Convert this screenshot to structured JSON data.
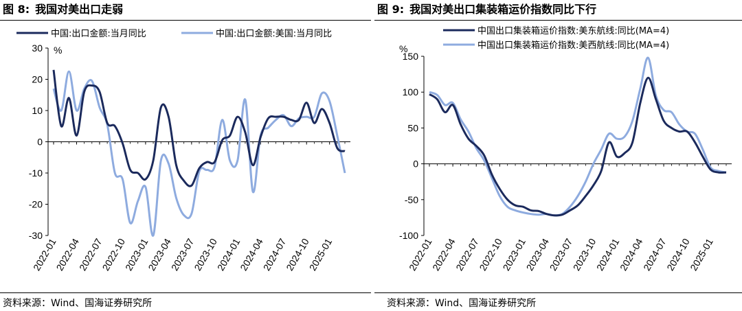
{
  "charts": [
    {
      "figure_label": "图 8:",
      "title": "我国对美出口走弱",
      "source": "资料来源：Wind、国海证券研究所",
      "chart_data": {
        "type": "line",
        "title": "我国对美出口走弱",
        "y_unit": "%",
        "ylim": [
          -30,
          30
        ],
        "yticks": [
          -30,
          -20,
          -10,
          0,
          10,
          20,
          30
        ],
        "x_tick_labels": [
          "2022-01",
          "2022-04",
          "2022-07",
          "2022-10",
          "2023-01",
          "2023-04",
          "2023-07",
          "2023-10",
          "2024-01",
          "2024-04",
          "2024-07",
          "2024-10",
          "2025-01"
        ],
        "grid": false,
        "legend_position": "top",
        "series": [
          {
            "name": "中国:出口金额:当月同比",
            "color": "#1b2a5c",
            "x": [
              "2022-01",
              "2022-02",
              "2022-03",
              "2022-04",
              "2022-05",
              "2022-06",
              "2022-07",
              "2022-08",
              "2022-09",
              "2022-10",
              "2022-11",
              "2022-12",
              "2023-01",
              "2023-02",
              "2023-03",
              "2023-04",
              "2023-05",
              "2023-06",
              "2023-07",
              "2023-08",
              "2023-09",
              "2023-10",
              "2023-11",
              "2023-12",
              "2024-01",
              "2024-02",
              "2024-03",
              "2024-04",
              "2024-05",
              "2024-06",
              "2024-07",
              "2024-08",
              "2024-09",
              "2024-10",
              "2024-11",
              "2024-12",
              "2025-01",
              "2025-02",
              "2025-03"
            ],
            "y": [
              23,
              5,
              14,
              2,
              16,
              18,
              16,
              6,
              5,
              -0.5,
              -9,
              -10,
              -12,
              -6,
              11,
              8,
              -7.5,
              -12.5,
              -14,
              -8.5,
              -6.5,
              -6.5,
              0.5,
              2,
              8,
              3,
              -7.5,
              1.5,
              7.5,
              8,
              8,
              7,
              7,
              12.5,
              6,
              10.5,
              6,
              -2,
              -3
            ]
          },
          {
            "name": "中国:出口金额:美国:当月同比",
            "color": "#8eabdf",
            "x": [
              "2022-01",
              "2022-02",
              "2022-03",
              "2022-04",
              "2022-05",
              "2022-06",
              "2022-07",
              "2022-08",
              "2022-09",
              "2022-10",
              "2022-11",
              "2022-12",
              "2023-01",
              "2023-02",
              "2023-03",
              "2023-04",
              "2023-05",
              "2023-06",
              "2023-07",
              "2023-08",
              "2023-09",
              "2023-10",
              "2023-11",
              "2023-12",
              "2024-01",
              "2024-02",
              "2024-03",
              "2024-04",
              "2024-05",
              "2024-06",
              "2024-07",
              "2024-08",
              "2024-09",
              "2024-10",
              "2024-11",
              "2024-12",
              "2025-01",
              "2025-02",
              "2025-03"
            ],
            "y": [
              17,
              10,
              22.5,
              10,
              17,
              19.5,
              11,
              5.5,
              -10,
              -12,
              -26,
              -19,
              -14.5,
              -30,
              -6,
              -7,
              -18,
              -23.5,
              -23,
              -9.5,
              -9,
              -8,
              7,
              -6,
              -6,
              13.5,
              -16,
              2,
              4.5,
              7,
              8.5,
              5,
              7.5,
              8,
              8,
              15.5,
              13,
              2,
              -10
            ]
          }
        ]
      }
    },
    {
      "figure_label": "图 9:",
      "title": "我国对美出口集装箱运价指数同比下行",
      "source": "资料来源：Wind、国海证券研究所",
      "chart_data": {
        "type": "line",
        "title": "我国对美出口集装箱运价指数同比下行",
        "y_unit": "%",
        "ylim": [
          -100,
          150
        ],
        "yticks": [
          -100,
          -50,
          0,
          50,
          100,
          150
        ],
        "x_tick_labels": [
          "2022-01",
          "2022-04",
          "2022-07",
          "2022-10",
          "2023-01",
          "2023-04",
          "2023-07",
          "2023-10",
          "2024-01",
          "2024-04",
          "2024-07",
          "2024-10",
          "2025-01"
        ],
        "grid": false,
        "legend_position": "top",
        "series": [
          {
            "name": "中国出口集装箱运价指数:美东航线:同比(MA=4)",
            "color": "#1b2a5c",
            "x": [
              "2022-01",
              "2022-02",
              "2022-03",
              "2022-04",
              "2022-05",
              "2022-06",
              "2022-07",
              "2022-08",
              "2022-09",
              "2022-10",
              "2022-11",
              "2022-12",
              "2023-01",
              "2023-02",
              "2023-03",
              "2023-04",
              "2023-05",
              "2023-06",
              "2023-07",
              "2023-08",
              "2023-09",
              "2023-10",
              "2023-11",
              "2023-12",
              "2024-01",
              "2024-02",
              "2024-03",
              "2024-04",
              "2024-05",
              "2024-06",
              "2024-07",
              "2024-08",
              "2024-09",
              "2024-10",
              "2024-11",
              "2024-12",
              "2025-01",
              "2025-02",
              "2025-03"
            ],
            "y": [
              97,
              90,
              72,
              82,
              55,
              35,
              25,
              12,
              -15,
              -35,
              -50,
              -58,
              -60,
              -65,
              -66,
              -70,
              -72,
              -71,
              -65,
              -58,
              -45,
              -30,
              -10,
              30,
              10,
              15,
              30,
              85,
              120,
              90,
              60,
              50,
              45,
              45,
              30,
              10,
              -8,
              -12,
              -12
            ]
          },
          {
            "name": "中国出口集装箱运价指数:美西航线:同比(MA=4)",
            "color": "#8eabdf",
            "x": [
              "2022-01",
              "2022-02",
              "2022-03",
              "2022-04",
              "2022-05",
              "2022-06",
              "2022-07",
              "2022-08",
              "2022-09",
              "2022-10",
              "2022-11",
              "2022-12",
              "2023-01",
              "2023-02",
              "2023-03",
              "2023-04",
              "2023-05",
              "2023-06",
              "2023-07",
              "2023-08",
              "2023-09",
              "2023-10",
              "2023-11",
              "2023-12",
              "2024-01",
              "2024-02",
              "2024-03",
              "2024-04",
              "2024-05",
              "2024-06",
              "2024-07",
              "2024-08",
              "2024-09",
              "2024-10",
              "2024-11",
              "2024-12",
              "2025-01",
              "2025-02",
              "2025-03"
            ],
            "y": [
              100,
              96,
              82,
              85,
              62,
              45,
              22,
              5,
              -20,
              -45,
              -60,
              -65,
              -68,
              -70,
              -71,
              -70,
              -72,
              -70,
              -60,
              -45,
              -25,
              0,
              20,
              42,
              35,
              38,
              60,
              105,
              148,
              95,
              75,
              72,
              55,
              45,
              42,
              20,
              -5,
              -10,
              -12
            ]
          }
        ]
      }
    }
  ]
}
